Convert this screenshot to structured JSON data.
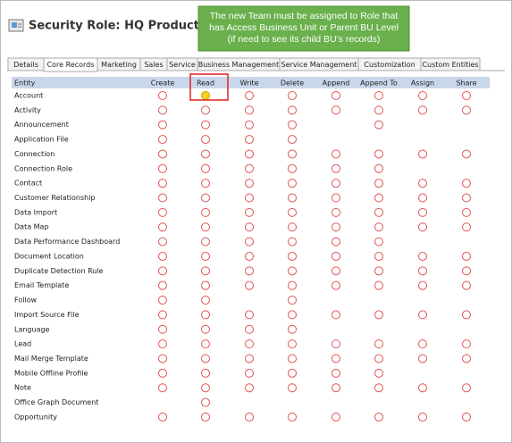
{
  "header": {
    "title": "Security Role: HQ Product Role"
  },
  "callout": {
    "lines": [
      "The new Team must be assigned to Role that",
      "has Access Business Unit or Parent BU Level",
      "(if need to see its child BU's records)"
    ]
  },
  "tabs": {
    "items": [
      "Details",
      "Core Records",
      "Marketing",
      "Sales",
      "Service",
      "Business Management",
      "Service Management",
      "Customization",
      "Custom Entities"
    ],
    "selected": 1
  },
  "table": {
    "columns": [
      "Entity",
      "Create",
      "Read",
      "Write",
      "Delete",
      "Append",
      "Append To",
      "Assign",
      "Share"
    ],
    "rows": [
      {
        "name": "Account",
        "levels": [
          0,
          1,
          0,
          0,
          0,
          0,
          0,
          0
        ]
      },
      {
        "name": "Activity",
        "levels": [
          0,
          0,
          0,
          0,
          0,
          0,
          0,
          0
        ]
      },
      {
        "name": "Announcement",
        "levels": [
          0,
          0,
          0,
          0,
          null,
          0,
          null,
          null
        ]
      },
      {
        "name": "Application File",
        "levels": [
          0,
          0,
          0,
          0,
          null,
          null,
          null,
          null
        ]
      },
      {
        "name": "Connection",
        "levels": [
          0,
          0,
          0,
          0,
          0,
          0,
          0,
          0
        ]
      },
      {
        "name": "Connection Role",
        "levels": [
          0,
          0,
          0,
          0,
          0,
          0,
          null,
          null
        ]
      },
      {
        "name": "Contact",
        "levels": [
          0,
          0,
          0,
          0,
          0,
          0,
          0,
          0
        ]
      },
      {
        "name": "Customer Relationship",
        "levels": [
          0,
          0,
          0,
          0,
          0,
          0,
          0,
          0
        ]
      },
      {
        "name": "Data Import",
        "levels": [
          0,
          0,
          0,
          0,
          0,
          0,
          0,
          0
        ]
      },
      {
        "name": "Data Map",
        "levels": [
          0,
          0,
          0,
          0,
          0,
          0,
          0,
          0
        ]
      },
      {
        "name": "Data Performance Dashboard",
        "levels": [
          0,
          0,
          0,
          0,
          0,
          0,
          null,
          null
        ]
      },
      {
        "name": "Document Location",
        "levels": [
          0,
          0,
          0,
          0,
          0,
          0,
          0,
          0
        ]
      },
      {
        "name": "Duplicate Detection Rule",
        "levels": [
          0,
          0,
          0,
          0,
          0,
          0,
          0,
          0
        ]
      },
      {
        "name": "Email Template",
        "levels": [
          0,
          0,
          0,
          0,
          0,
          0,
          0,
          0
        ]
      },
      {
        "name": "Follow",
        "levels": [
          0,
          0,
          null,
          0,
          null,
          null,
          null,
          null
        ]
      },
      {
        "name": "Import Source File",
        "levels": [
          0,
          0,
          0,
          0,
          0,
          0,
          0,
          0
        ]
      },
      {
        "name": "Language",
        "levels": [
          0,
          0,
          0,
          0,
          null,
          null,
          null,
          null
        ]
      },
      {
        "name": "Lead",
        "levels": [
          0,
          0,
          0,
          0,
          0,
          0,
          0,
          0
        ]
      },
      {
        "name": "Mail Merge Template",
        "levels": [
          0,
          0,
          0,
          0,
          0,
          0,
          0,
          0
        ]
      },
      {
        "name": "Mobile Offline Profile",
        "levels": [
          0,
          0,
          0,
          0,
          0,
          0,
          null,
          null
        ]
      },
      {
        "name": "Note",
        "levels": [
          0,
          0,
          0,
          0,
          0,
          0,
          0,
          0
        ]
      },
      {
        "name": "Office Graph Document",
        "levels": [
          null,
          0,
          null,
          null,
          null,
          null,
          null,
          null
        ]
      },
      {
        "name": "Opportunity",
        "levels": [
          0,
          0,
          0,
          0,
          0,
          0,
          0,
          0
        ]
      }
    ]
  }
}
